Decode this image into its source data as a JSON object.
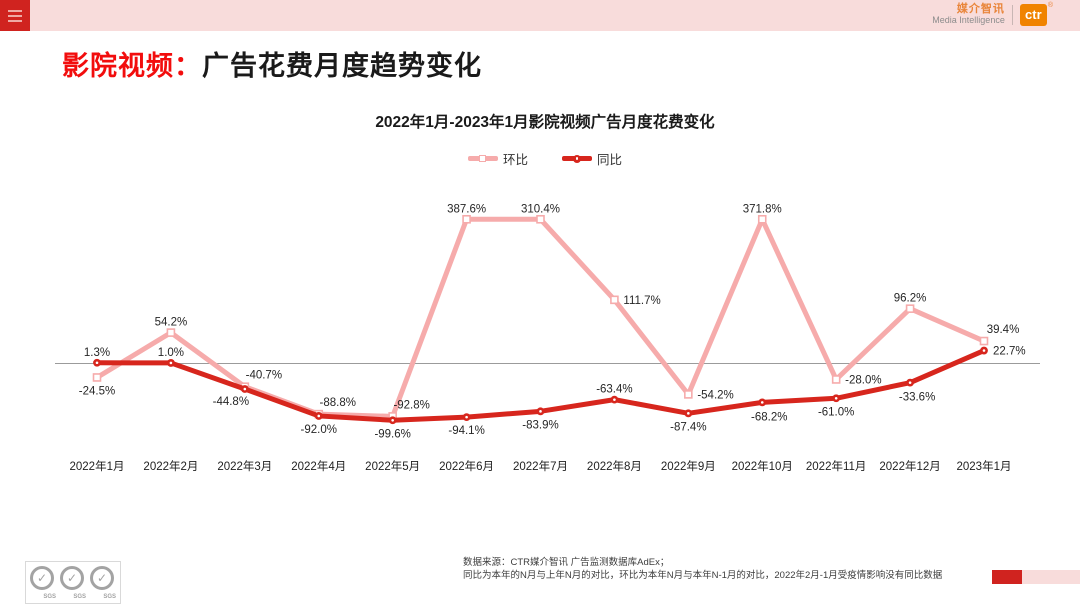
{
  "header": {
    "brand": {
      "cn": "媒介智讯",
      "en": "Media Intelligence",
      "logo": "ctr",
      "reg_mark": "®"
    },
    "menu_icon": "hamburger-icon"
  },
  "page_title": {
    "highlight": "影院视频：",
    "rest": "广告花费月度趋势变化"
  },
  "chart_data": {
    "type": "line",
    "title": "2022年1月-2023年1月影院视频广告月度花费变化",
    "legend_position": "top-center",
    "grid": false,
    "zero_axis_line": true,
    "ylim": [
      -110,
      400
    ],
    "categories": [
      "2022年1月",
      "2022年2月",
      "2022年3月",
      "2022年4月",
      "2022年5月",
      "2022年6月",
      "2022年7月",
      "2022年8月",
      "2022年9月",
      "2022年10月",
      "2022年11月",
      "2022年12月",
      "2023年1月"
    ],
    "series": [
      {
        "name": "环比",
        "color": "#f6abab",
        "marker": "square",
        "values": [
          -24.5,
          54.2,
          -40.7,
          -88.8,
          -92.8,
          387.6,
          310.4,
          111.7,
          -54.2,
          371.8,
          -28.0,
          96.2,
          39.4
        ],
        "labels": [
          "-24.5%",
          "54.2%",
          "-40.7%",
          "-88.8%",
          "-92.8%",
          "387.6%",
          "310.4%",
          "111.7%",
          "-54.2%",
          "371.8%",
          "-28.0%",
          "96.2%",
          "39.4%"
        ],
        "label_pos": [
          "below",
          "above",
          "above-right",
          "above-right",
          "above-right",
          "above",
          "above",
          "right",
          "right",
          "above",
          "right",
          "above",
          "above-right"
        ]
      },
      {
        "name": "同比",
        "color": "#d7261d",
        "marker": "circle",
        "values": [
          1.3,
          1.0,
          -44.8,
          -92.0,
          -99.6,
          -94.1,
          -83.9,
          -63.4,
          -87.4,
          -68.2,
          -61.0,
          -33.6,
          22.7
        ],
        "labels": [
          "1.3%",
          "1.0%",
          "-44.8%",
          "-92.0%",
          "-99.6%",
          "-94.1%",
          "-83.9%",
          "-63.4%",
          "-87.4%",
          "-68.2%",
          "-61.0%",
          "-33.6%",
          "22.7%"
        ],
        "label_pos": [
          "above",
          "above",
          "below-left",
          "below",
          "below",
          "below",
          "below",
          "above",
          "below",
          "below-right",
          "below",
          "below-right",
          "right"
        ]
      }
    ]
  },
  "footer": {
    "source_line1": "数据来源：CTR媒介智讯 广告监测数据库AdEx；",
    "source_line2": "同比为本年的N月与上年N月的对比，环比为本年N月与本年N-1月的对比，2022年2月-1月受疫情影响没有同比数据",
    "sgs_label": "SGS",
    "sgs_check": "✓"
  },
  "colors": {
    "accent_red": "#d0231f",
    "title_red": "#f20d0d",
    "topbar_pink": "#f8dcdb",
    "series_pink": "#f6abab",
    "series_red": "#d7261d",
    "logo_orange": "#f08300"
  }
}
